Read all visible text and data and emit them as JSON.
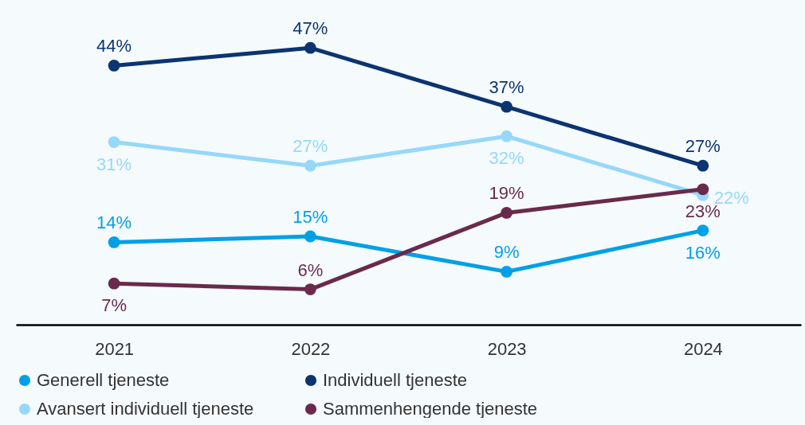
{
  "chart_data": {
    "type": "line",
    "categories": [
      "2021",
      "2022",
      "2023",
      "2024"
    ],
    "series": [
      {
        "name": "Generell tjeneste",
        "color": "#00a0e6",
        "values": [
          14,
          15,
          9,
          16
        ],
        "value_labels": [
          "14%",
          "15%",
          "9%",
          "16%"
        ]
      },
      {
        "name": "Individuell tjeneste",
        "color": "#0b3470",
        "values": [
          44,
          47,
          37,
          27
        ],
        "value_labels": [
          "44%",
          "47%",
          "37%",
          "27%"
        ]
      },
      {
        "name": "Avansert individuell tjeneste",
        "color": "#96d8fa",
        "values": [
          31,
          27,
          32,
          22
        ],
        "value_labels": [
          "31%",
          "27%",
          "32%",
          "22%"
        ]
      },
      {
        "name": "Sammenhengende tjeneste",
        "color": "#6a2a4c",
        "values": [
          7,
          6,
          19,
          23
        ],
        "value_labels": [
          "7%",
          "6%",
          "19%",
          "23%"
        ]
      }
    ],
    "legend": "bottom",
    "grid": false,
    "marker": "circle",
    "line_style": "solid"
  }
}
